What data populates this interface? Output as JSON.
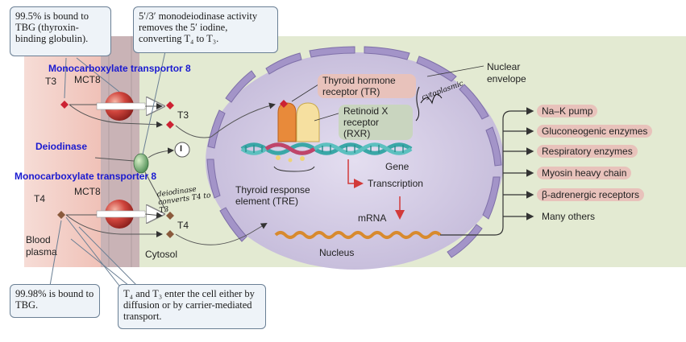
{
  "callouts": {
    "tbg_t3": "99.5% is bound to TBG (thyroxin-binding globulin).",
    "deiodinase_activity": "5′/3′ monodeiodinase activity removes the 5′ iodine, converting T₄ to T₃.",
    "tbg_t4": "99.98% is bound to TBG.",
    "entry": "T₄ and T₃ enter the cell either by diffusion or by carrier-mediated transport."
  },
  "labels": {
    "t3_outside": "T3",
    "t3_inside": "T3",
    "t4_outside": "T4",
    "t4_inside": "T4",
    "mct8_top": "MCT8",
    "mct8_bottom": "MCT8",
    "transporter_top": "Monocarboxylate transportor 8",
    "transporter_bottom": "Monocarboxylate transporter 8",
    "deiodinase": "Deiodinase",
    "blood_plasma": "Blood plasma",
    "cytosol": "Cytosol",
    "nucleus": "Nucleus",
    "nuclear_envelope": "Nuclear envelope",
    "thyroid_receptor": "Thyroid hormone receptor (TR)",
    "retinoid_receptor": "Retinoid X receptor (RXR)",
    "gene": "Gene",
    "transcription": "Transcription",
    "mrna": "mRNA",
    "tre": "Thyroid response element (TRE)",
    "inhibit_symbol": "I"
  },
  "handwritten": {
    "receptor_note": "cytoplasmic",
    "deiodinase_note": "deiodinase converts T4 to T3"
  },
  "outputs": [
    "Na–K pump",
    "Gluconeogenic enzymes",
    "Respiratory enzymes",
    "Myosin heavy chain",
    "β-adrenergic receptors",
    "Many others"
  ],
  "colors": {
    "blood_bg": "#f1c9c0",
    "cell_bg": "#e3ead2",
    "membrane": "#c6b4b7",
    "nucleus_fill": "#cfc7e0",
    "envelope": "#9a8cc0",
    "hormone": "#cc2233",
    "t4_marker": "#8a5a3c",
    "transporter": "#c83a36",
    "deiodinase_enzyme": "#78b07a",
    "tr_receptor": "#e88a3a",
    "rxr_receptor": "#f1d98a",
    "dna": "#3aa7a7",
    "mrna": "#d88a2e",
    "arrow_red": "#d23a3a",
    "blue_text": "#1a1ad0"
  }
}
